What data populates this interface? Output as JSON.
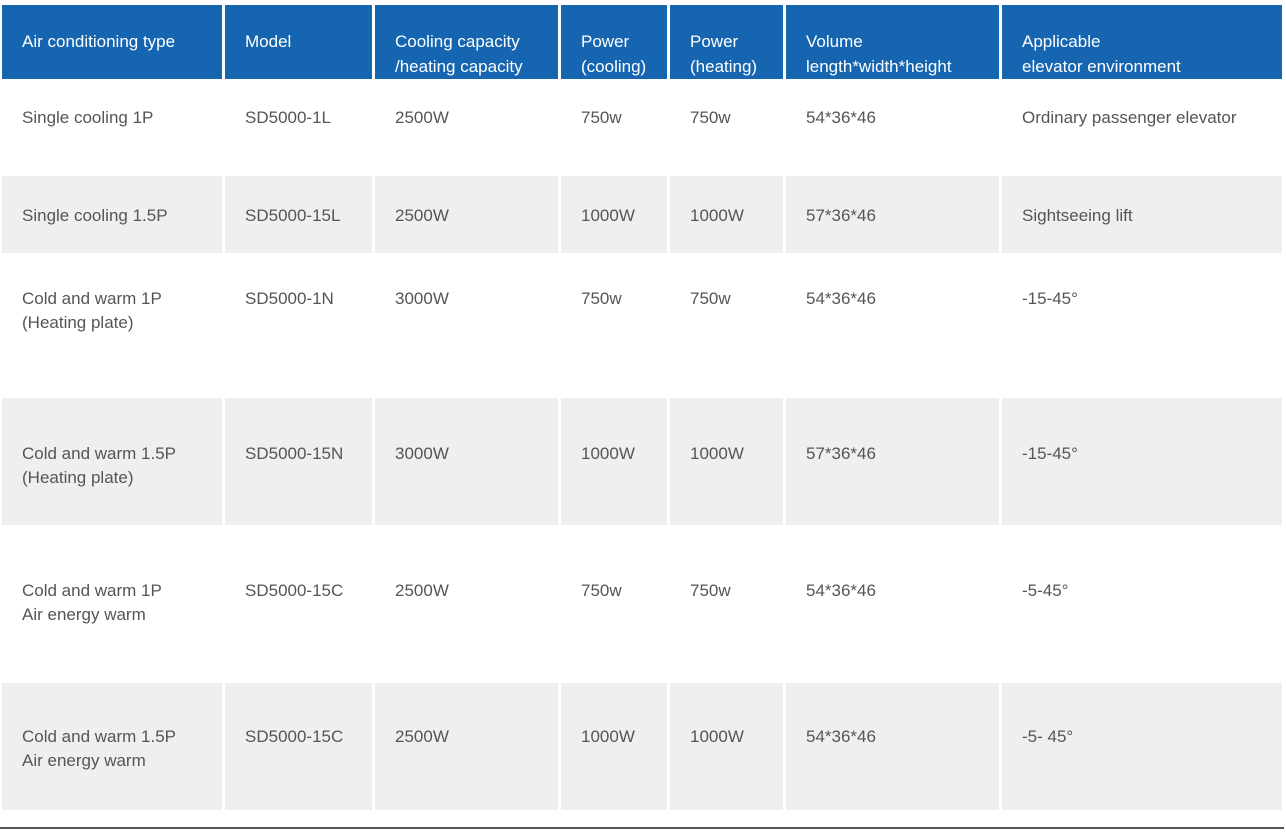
{
  "table": {
    "headers": [
      "Air conditioning type",
      "Model",
      "Cooling capacity\n/heating capacity",
      "Power\n(cooling)",
      "Power\n(heating)",
      "Volume\nlength*width*height",
      "Applicable\nelevator environment"
    ],
    "rows": [
      [
        "Single cooling 1P",
        "SD5000-1L",
        "2500W",
        "750w",
        "750w",
        "54*36*46",
        "Ordinary passenger elevator"
      ],
      [
        "Single cooling 1.5P",
        "SD5000-15L",
        "2500W",
        "1000W",
        "1000W",
        "57*36*46",
        "Sightseeing lift"
      ],
      [
        "Cold and warm 1P\n(Heating plate)",
        "SD5000-1N",
        "3000W",
        "750w",
        "750w",
        "54*36*46",
        "-15-45°"
      ],
      [
        "Cold and warm 1.5P\n(Heating plate)",
        "SD5000-15N",
        "3000W",
        "1000W",
        "1000W",
        "57*36*46",
        "-15-45°"
      ],
      [
        "Cold and warm 1P\nAir energy warm",
        "SD5000-15C",
        "2500W",
        "750w",
        "750w",
        "54*36*46",
        "-5-45°"
      ],
      [
        "Cold and warm 1.5P\nAir energy warm",
        "SD5000-15C",
        "2500W",
        "1000W",
        "1000W",
        "54*36*46",
        "-5- 45°"
      ]
    ]
  },
  "colors": {
    "header_bg": "#1565b0",
    "header_text": "#ffffff",
    "row_alt_bg": "#efefef",
    "cell_text": "#555555"
  }
}
